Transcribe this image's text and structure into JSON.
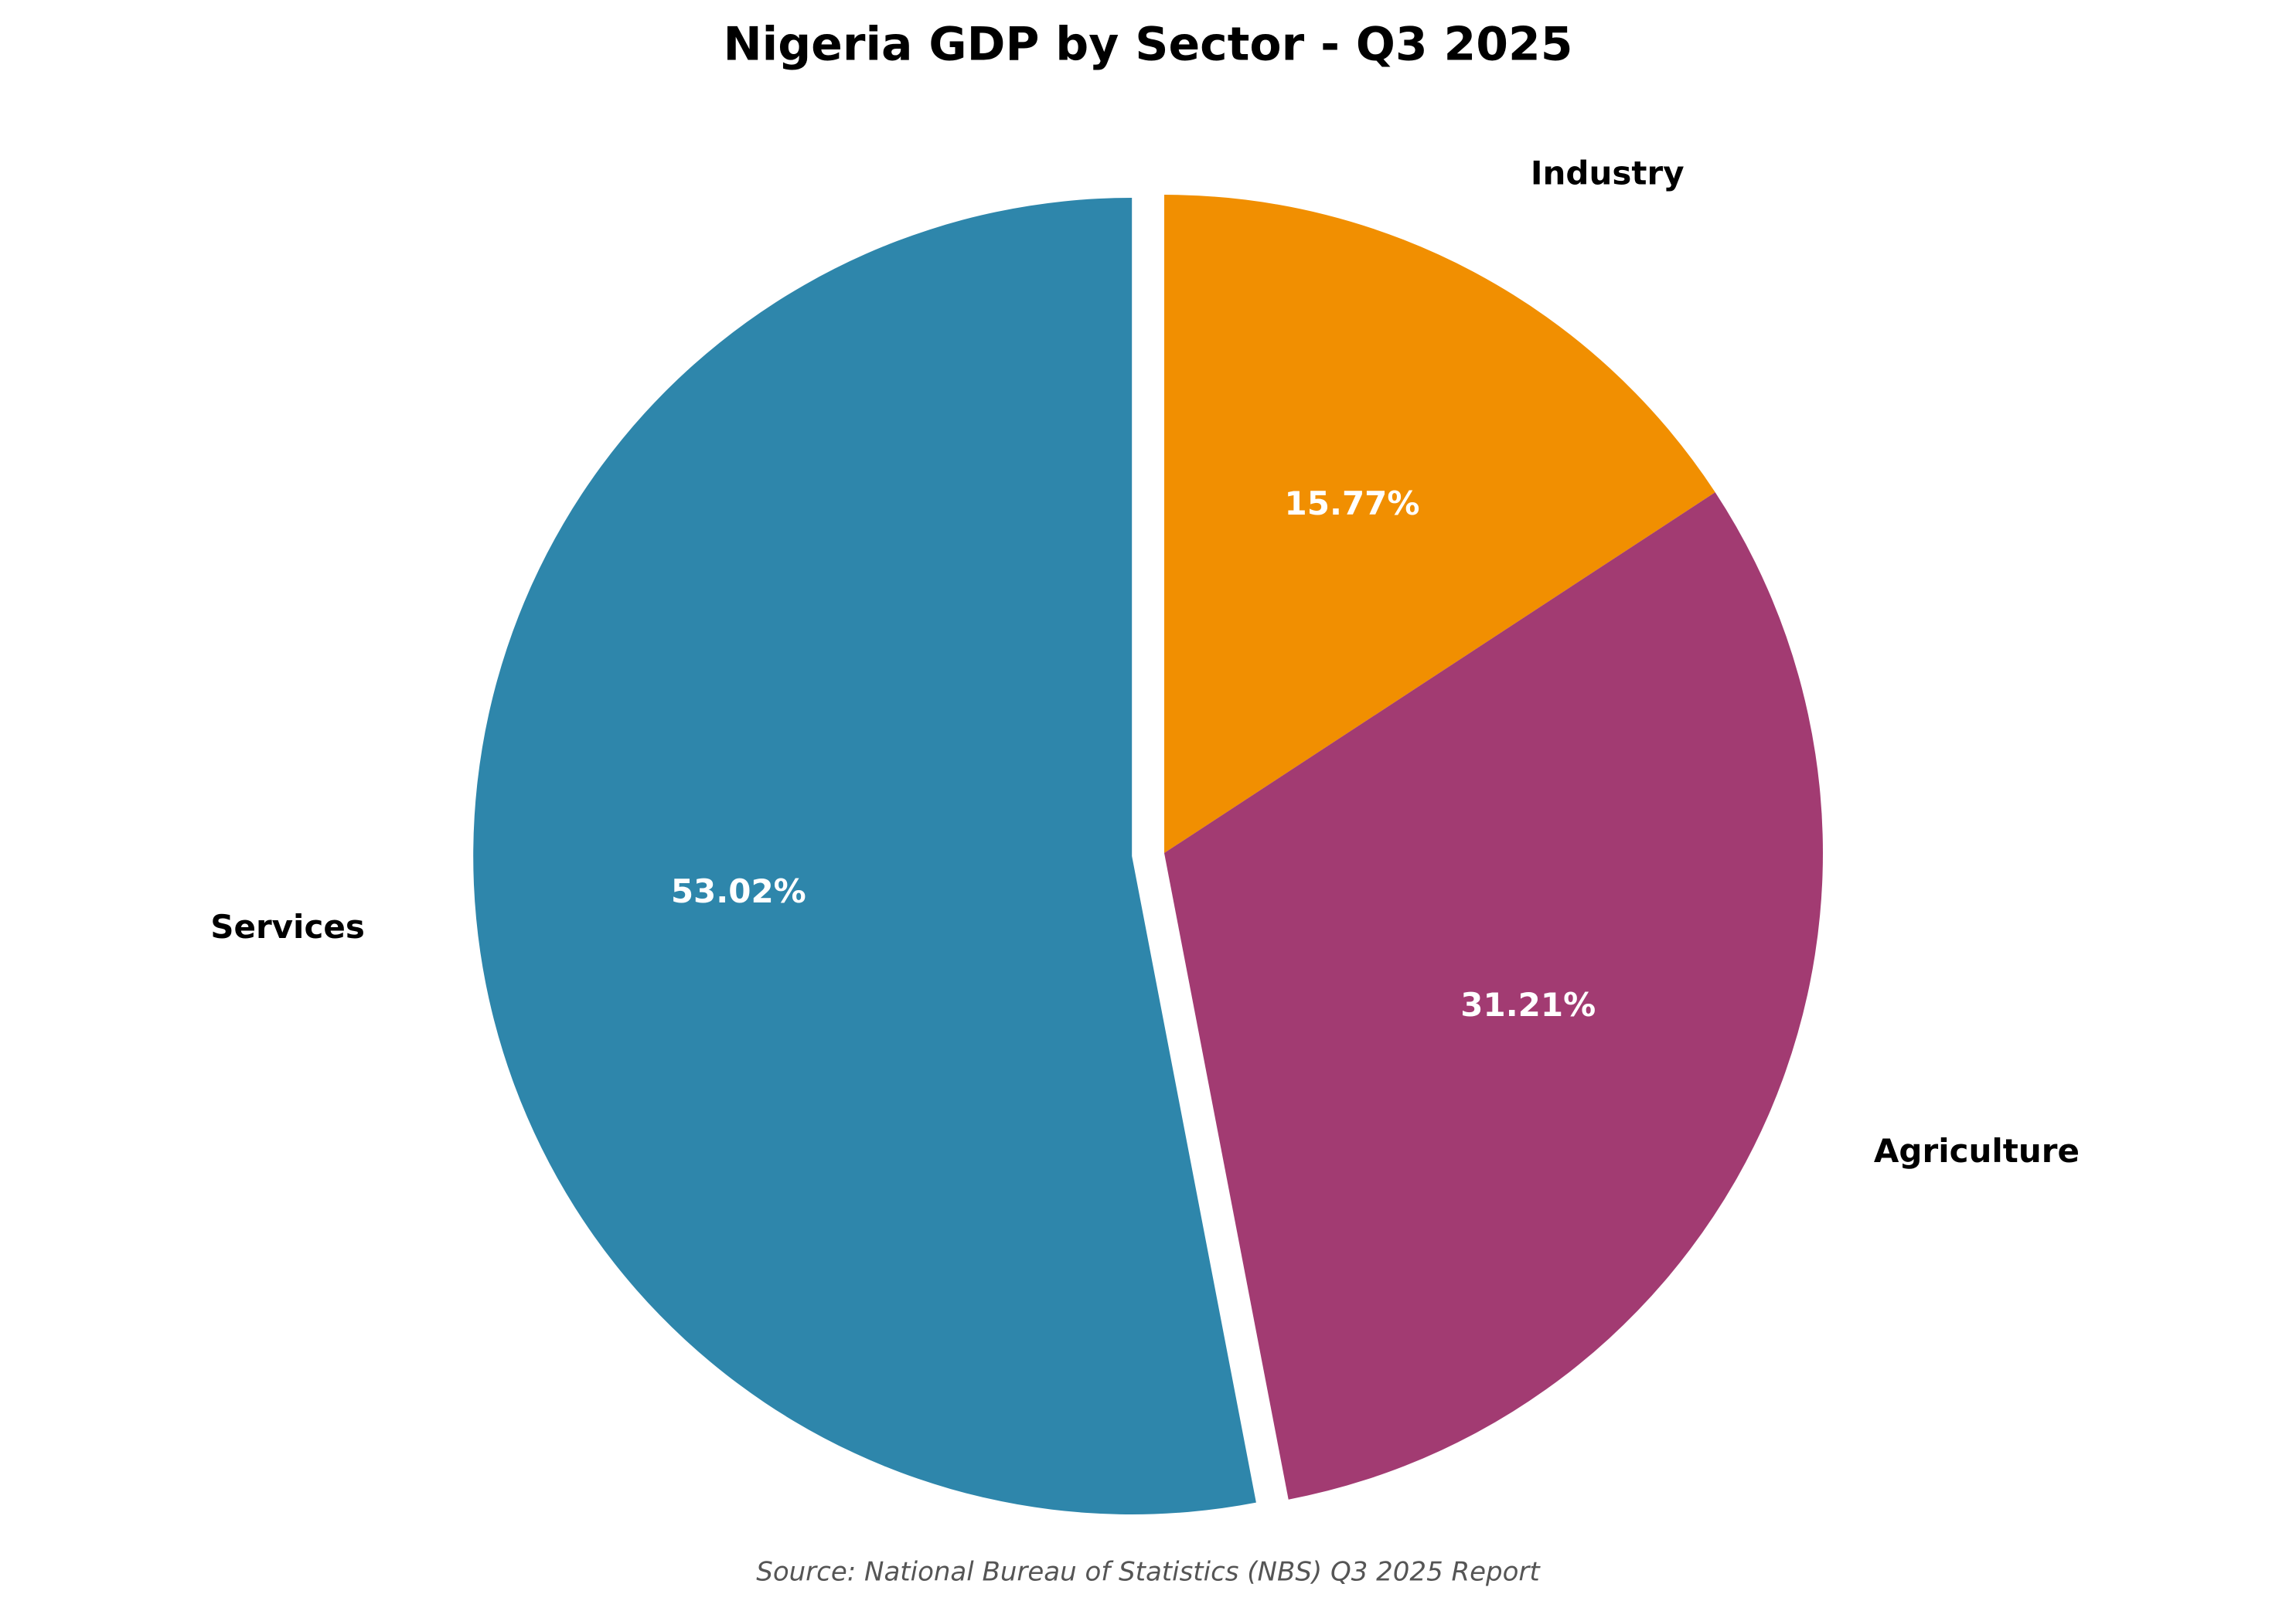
{
  "chart_data": {
    "type": "pie",
    "title": "Nigeria GDP by Sector - Q3 2025",
    "categories": [
      "Industry",
      "Agriculture",
      "Services"
    ],
    "values": [
      15.77,
      31.21,
      53.02
    ],
    "value_labels": [
      "15.77%",
      "31.21%",
      "53.02%"
    ],
    "colors": [
      "#F18F01",
      "#A23B72",
      "#2E86AB"
    ],
    "explode": [
      false,
      false,
      true
    ],
    "source": "Source: National Bureau of Statistics (NBS) Q3 2025 Report"
  }
}
